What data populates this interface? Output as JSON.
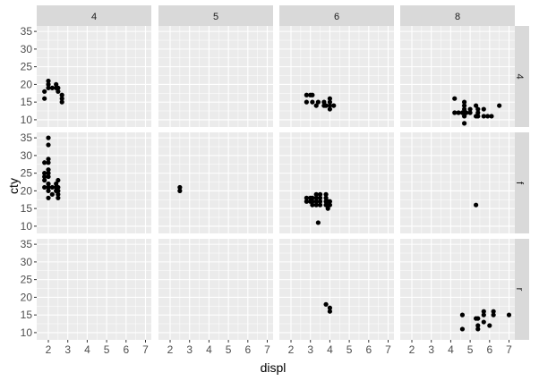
{
  "chart_data": {
    "type": "scatter",
    "xlabel": "displ",
    "ylabel": "cty",
    "xlim": [
      1.4,
      7.3
    ],
    "ylim": [
      7.95,
      36.55
    ],
    "x_ticks": [
      "2",
      "3",
      "4",
      "5",
      "6",
      "7"
    ],
    "y_ticks": [
      "10",
      "15",
      "20",
      "25",
      "30",
      "35"
    ],
    "facet_cols": [
      "4",
      "5",
      "6",
      "8"
    ],
    "facet_rows": [
      "4",
      "f",
      "r"
    ],
    "grid": true,
    "point_color": "#000000",
    "panels": [
      {
        "col": "4",
        "row": "4",
        "points": [
          [
            1.8,
            18
          ],
          [
            1.8,
            16
          ],
          [
            2.0,
            20
          ],
          [
            2.0,
            19
          ],
          [
            2.0,
            21
          ],
          [
            2.2,
            19
          ],
          [
            2.4,
            19
          ],
          [
            2.4,
            20
          ],
          [
            2.5,
            18
          ],
          [
            2.5,
            19
          ],
          [
            2.7,
            17
          ],
          [
            2.7,
            16
          ],
          [
            2.7,
            15
          ]
        ]
      },
      {
        "col": "4",
        "row": "f",
        "points": [
          [
            1.8,
            28
          ],
          [
            1.8,
            25
          ],
          [
            1.8,
            24
          ],
          [
            1.8,
            23
          ],
          [
            1.8,
            21
          ],
          [
            2.0,
            35
          ],
          [
            2.0,
            33
          ],
          [
            2.0,
            29
          ],
          [
            2.0,
            28
          ],
          [
            2.0,
            26
          ],
          [
            2.0,
            25
          ],
          [
            2.0,
            24
          ],
          [
            2.0,
            22
          ],
          [
            2.0,
            21
          ],
          [
            2.0,
            20
          ],
          [
            2.0,
            18
          ],
          [
            2.2,
            21
          ],
          [
            2.2,
            19
          ],
          [
            2.4,
            22
          ],
          [
            2.4,
            21
          ],
          [
            2.4,
            20
          ],
          [
            2.5,
            23
          ],
          [
            2.5,
            21
          ],
          [
            2.5,
            20
          ],
          [
            2.5,
            19
          ],
          [
            2.5,
            18
          ]
        ]
      },
      {
        "col": "4",
        "row": "r",
        "points": []
      },
      {
        "col": "5",
        "row": "4",
        "points": []
      },
      {
        "col": "5",
        "row": "f",
        "points": [
          [
            2.5,
            21
          ],
          [
            2.5,
            20
          ]
        ]
      },
      {
        "col": "5",
        "row": "r",
        "points": []
      },
      {
        "col": "6",
        "row": "4",
        "points": [
          [
            2.8,
            17
          ],
          [
            2.8,
            15
          ],
          [
            3.0,
            17
          ],
          [
            3.1,
            17
          ],
          [
            3.1,
            15
          ],
          [
            3.3,
            14
          ],
          [
            3.4,
            15
          ],
          [
            3.7,
            14
          ],
          [
            3.7,
            15
          ],
          [
            3.8,
            14
          ],
          [
            4.0,
            16
          ],
          [
            4.0,
            15
          ],
          [
            4.0,
            14
          ],
          [
            4.0,
            13
          ],
          [
            4.2,
            14
          ]
        ]
      },
      {
        "col": "6",
        "row": "f",
        "points": [
          [
            2.8,
            18
          ],
          [
            2.8,
            17
          ],
          [
            3.0,
            18
          ],
          [
            3.0,
            17
          ],
          [
            3.1,
            18
          ],
          [
            3.1,
            17
          ],
          [
            3.1,
            16
          ],
          [
            3.3,
            19
          ],
          [
            3.3,
            18
          ],
          [
            3.3,
            17
          ],
          [
            3.3,
            16
          ],
          [
            3.4,
            11
          ],
          [
            3.5,
            19
          ],
          [
            3.5,
            18
          ],
          [
            3.5,
            17
          ],
          [
            3.5,
            16
          ],
          [
            3.8,
            19
          ],
          [
            3.8,
            18
          ],
          [
            3.8,
            17
          ],
          [
            3.8,
            16
          ],
          [
            3.9,
            17
          ],
          [
            3.9,
            15
          ],
          [
            4.0,
            16
          ],
          [
            4.0,
            17
          ]
        ]
      },
      {
        "col": "6",
        "row": "r",
        "points": [
          [
            3.8,
            18
          ],
          [
            4.0,
            17
          ],
          [
            4.0,
            16
          ]
        ]
      },
      {
        "col": "8",
        "row": "4",
        "points": [
          [
            4.2,
            16
          ],
          [
            4.2,
            12
          ],
          [
            4.4,
            12
          ],
          [
            4.6,
            12
          ],
          [
            4.7,
            13
          ],
          [
            4.7,
            12
          ],
          [
            4.7,
            11
          ],
          [
            4.7,
            9
          ],
          [
            4.7,
            14
          ],
          [
            4.7,
            15
          ],
          [
            4.8,
            12
          ],
          [
            5.0,
            12
          ],
          [
            5.0,
            13
          ],
          [
            5.3,
            14
          ],
          [
            5.3,
            11
          ],
          [
            5.4,
            11
          ],
          [
            5.4,
            13
          ],
          [
            5.4,
            12
          ],
          [
            5.7,
            13
          ],
          [
            5.7,
            11
          ],
          [
            5.9,
            11
          ],
          [
            6.1,
            11
          ],
          [
            6.5,
            14
          ]
        ]
      },
      {
        "col": "8",
        "row": "f",
        "points": [
          [
            5.3,
            16
          ]
        ]
      },
      {
        "col": "8",
        "row": "r",
        "points": [
          [
            4.6,
            15
          ],
          [
            4.6,
            11
          ],
          [
            5.3,
            14
          ],
          [
            5.4,
            12
          ],
          [
            5.4,
            11
          ],
          [
            5.4,
            14
          ],
          [
            5.7,
            15
          ],
          [
            5.7,
            16
          ],
          [
            5.7,
            13
          ],
          [
            6.0,
            12
          ],
          [
            6.2,
            15
          ],
          [
            6.2,
            16
          ],
          [
            7.0,
            15
          ]
        ]
      }
    ]
  }
}
